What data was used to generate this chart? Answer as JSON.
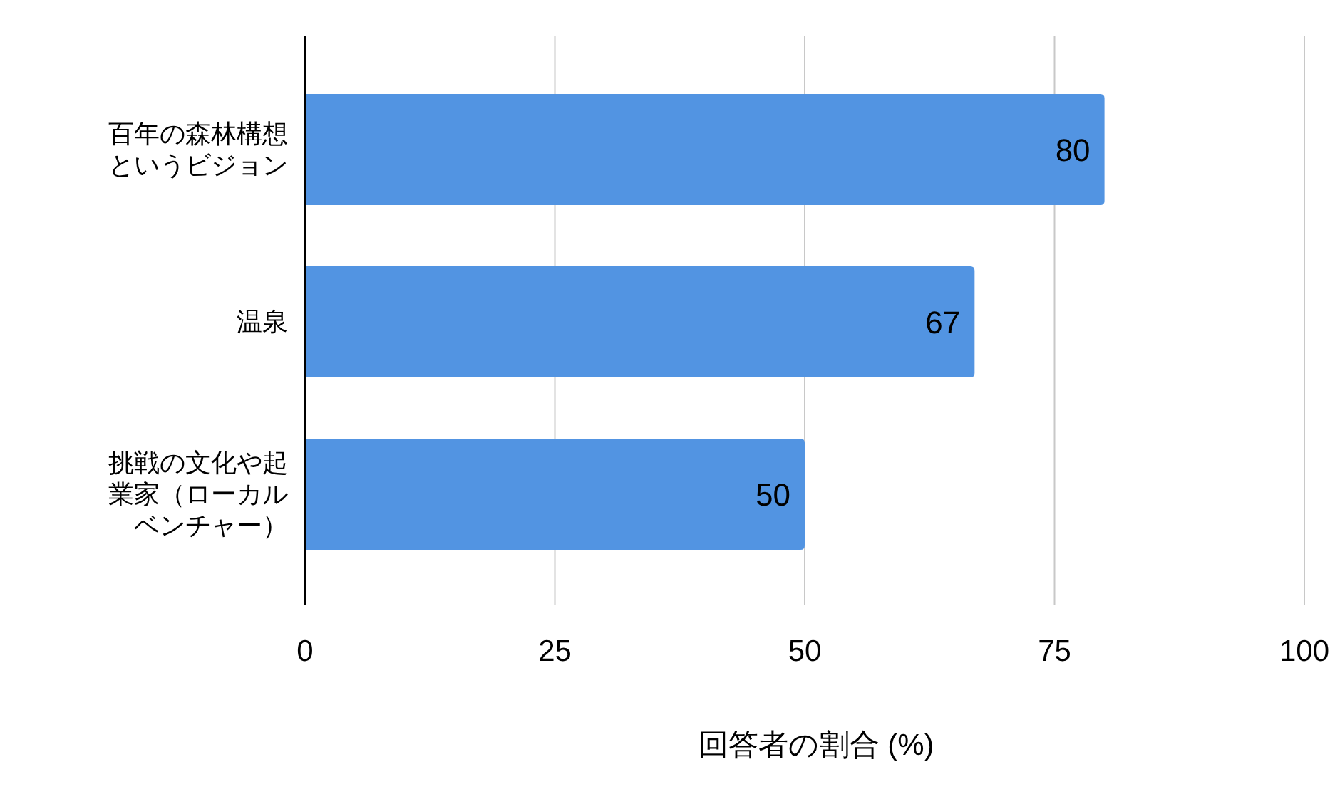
{
  "chart_data": {
    "type": "bar",
    "orientation": "horizontal",
    "xlabel": "回答者の割合 (%)",
    "categories": [
      "百年の森林構想というビジョン",
      "温泉",
      "挑戦の文化や起業家（ローカルベンチャー）"
    ],
    "values": [
      80,
      67,
      50
    ],
    "color": "#5294e2",
    "xlim": [
      0,
      100
    ],
    "xticks": [
      0,
      25,
      50,
      75,
      100
    ],
    "grid": "x",
    "data_labels": true
  }
}
